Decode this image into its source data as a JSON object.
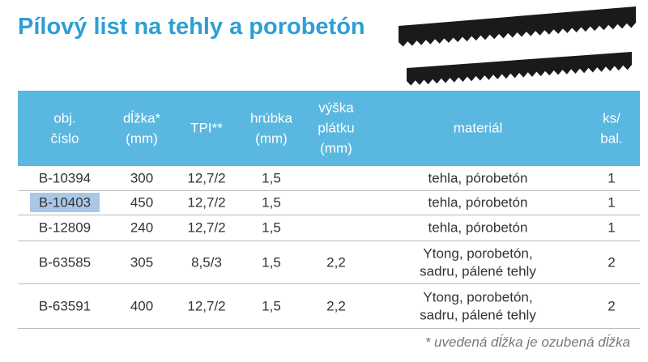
{
  "header": {
    "title": "Pílový list na tehly a porobetón"
  },
  "table": {
    "headers": [
      [
        "obj.",
        "číslo"
      ],
      [
        "dĺžka*",
        "(mm)"
      ],
      [
        "TPI**"
      ],
      [
        "hrúbka",
        "(mm)"
      ],
      [
        "výška",
        "plátku",
        "(mm)"
      ],
      [
        "materiál"
      ],
      [
        "ks/",
        "bal."
      ]
    ],
    "rows": [
      [
        [
          "B-10394"
        ],
        [
          "300"
        ],
        [
          "12,7/2"
        ],
        [
          "1,5"
        ],
        null,
        [
          "tehla, pórobetón"
        ],
        [
          "1"
        ]
      ],
      [
        [
          "B-10403"
        ],
        [
          "450"
        ],
        [
          "12,7/2"
        ],
        [
          "1,5"
        ],
        null,
        [
          "tehla, pórobetón"
        ],
        [
          "1"
        ]
      ],
      [
        [
          "B-12809"
        ],
        [
          "240"
        ],
        [
          "12,7/2"
        ],
        [
          "1,5"
        ],
        null,
        [
          "tehla, pórobetón"
        ],
        [
          "1"
        ]
      ],
      [
        [
          "B-63585"
        ],
        [
          "305"
        ],
        [
          "8,5/3"
        ],
        [
          "1,5"
        ],
        [
          "2,2"
        ],
        [
          "Ytong, porobetón,",
          "sadru, pálené tehly"
        ],
        [
          "2"
        ]
      ],
      [
        [
          "B-63591"
        ],
        [
          "400"
        ],
        [
          "12,7/2"
        ],
        [
          "1,5"
        ],
        [
          "2,2"
        ],
        [
          "Ytong, porobetón,",
          "sadru, pálené tehly"
        ],
        [
          "2"
        ]
      ]
    ]
  },
  "footnote": "* uvedená dĺžka je ozubená dĺžka"
}
